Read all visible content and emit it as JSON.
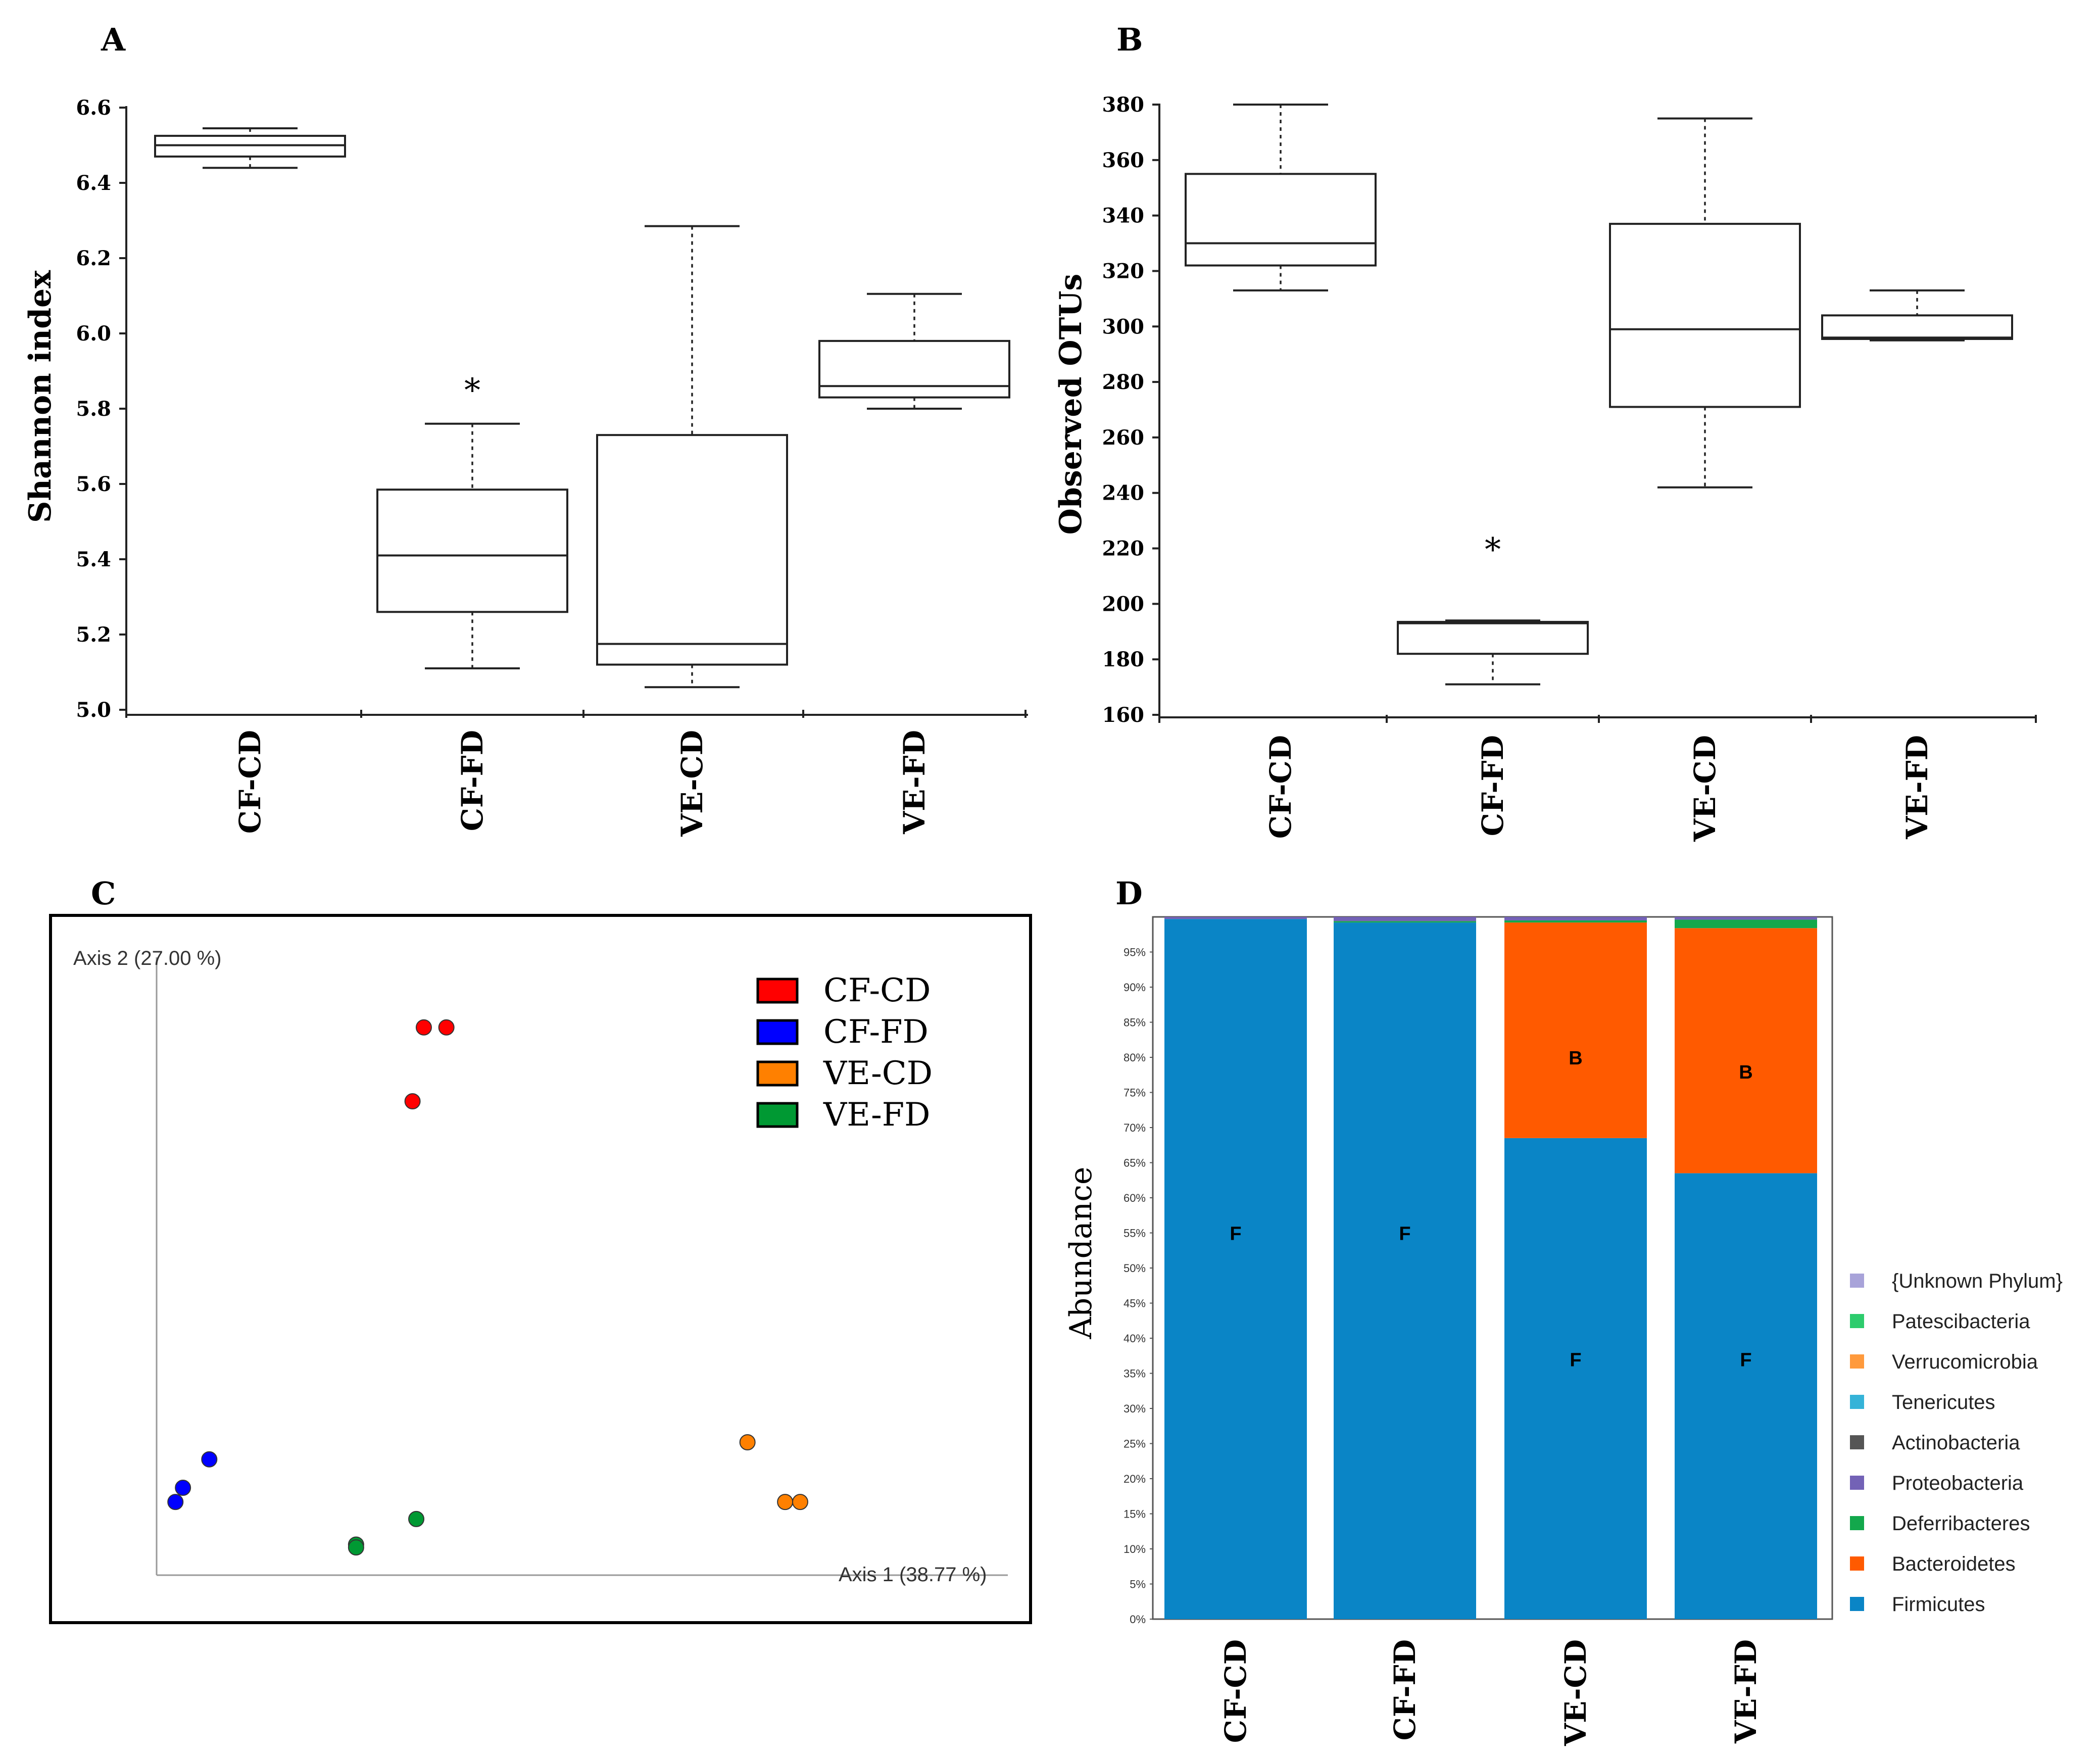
{
  "panels": {
    "A": "A",
    "B": "B",
    "C": "C",
    "D": "D"
  },
  "chart_data": [
    {
      "id": "A",
      "type": "box",
      "title": "",
      "xlabel": "",
      "ylabel": "Shannon index",
      "ylim": [
        5.0,
        6.6
      ],
      "yticks": [
        "5.0",
        "5.2",
        "5.4",
        "5.6",
        "5.8",
        "6.0",
        "6.2",
        "6.4",
        "6.6"
      ],
      "categories": [
        "CF-CD",
        "CF-FD",
        "VE-CD",
        "VE-FD"
      ],
      "boxes": [
        {
          "min": 6.44,
          "q1": 6.47,
          "median": 6.5,
          "q3": 6.525,
          "max": 6.545
        },
        {
          "min": 5.11,
          "q1": 5.26,
          "median": 5.41,
          "q3": 5.585,
          "max": 5.76
        },
        {
          "min": 5.06,
          "q1": 5.12,
          "median": 5.175,
          "q3": 5.73,
          "max": 6.285
        },
        {
          "min": 5.8,
          "q1": 5.83,
          "median": 5.86,
          "q3": 5.98,
          "max": 6.105
        }
      ],
      "annotations": [
        {
          "category": "CF-FD",
          "text": "*",
          "y": 5.86
        }
      ]
    },
    {
      "id": "B",
      "type": "box",
      "title": "",
      "xlabel": "",
      "ylabel": "Observed OTUs",
      "ylim": [
        160,
        380
      ],
      "yticks": [
        "160",
        "180",
        "200",
        "220",
        "240",
        "260",
        "280",
        "300",
        "320",
        "340",
        "360",
        "380"
      ],
      "categories": [
        "CF-CD",
        "CF-FD",
        "VE-CD",
        "VE-FD"
      ],
      "boxes": [
        {
          "min": 313,
          "q1": 322,
          "median": 330,
          "q3": 355,
          "max": 380
        },
        {
          "min": 171,
          "q1": 182,
          "median": 193,
          "q3": 193.5,
          "max": 194
        },
        {
          "min": 242,
          "q1": 271,
          "median": 299,
          "q3": 337,
          "max": 375
        },
        {
          "min": 295,
          "q1": 295.5,
          "median": 296,
          "q3": 304,
          "max": 313
        }
      ],
      "annotations": [
        {
          "category": "CF-FD",
          "text": "*",
          "y": 221
        }
      ]
    },
    {
      "id": "C",
      "type": "scatter",
      "title": "",
      "xlabel": "Axis 1 (38.77 %)",
      "ylabel": "Axis 2 (27.00 %)",
      "xlim": [
        0,
        1
      ],
      "ylim": [
        0,
        1
      ],
      "legend": [
        {
          "name": "CF-CD",
          "color": "#ff0000"
        },
        {
          "name": "CF-FD",
          "color": "#0000ff"
        },
        {
          "name": "VE-CD",
          "color": "#ff8000"
        },
        {
          "name": "VE-FD",
          "color": "#009933"
        }
      ],
      "series": [
        {
          "name": "CF-CD",
          "color": "#ff0000",
          "points": [
            [
              0.355,
              0.93
            ],
            [
              0.385,
              0.93
            ],
            [
              0.34,
              0.8
            ]
          ]
        },
        {
          "name": "CF-FD",
          "color": "#0000ff",
          "points": [
            [
              0.07,
              0.17
            ],
            [
              0.035,
              0.12
            ],
            [
              0.025,
              0.095
            ]
          ]
        },
        {
          "name": "VE-CD",
          "color": "#ff8000",
          "points": [
            [
              0.785,
              0.2
            ],
            [
              0.835,
              0.095
            ],
            [
              0.855,
              0.095
            ]
          ]
        },
        {
          "name": "VE-FD",
          "color": "#009933",
          "points": [
            [
              0.345,
              0.065
            ],
            [
              0.265,
              0.02
            ],
            [
              0.265,
              0.015
            ]
          ]
        }
      ]
    },
    {
      "id": "D",
      "type": "stacked_bar",
      "title": "",
      "xlabel": "",
      "ylabel": "Abundance",
      "ylim": [
        0,
        100
      ],
      "yticks": [
        "0%",
        "5%",
        "10%",
        "15%",
        "20%",
        "25%",
        "30%",
        "35%",
        "40%",
        "45%",
        "50%",
        "55%",
        "60%",
        "65%",
        "70%",
        "75%",
        "80%",
        "85%",
        "90%",
        "95%"
      ],
      "categories": [
        "CF-CD",
        "CF-FD",
        "VE-CD",
        "VE-FD"
      ],
      "legend": [
        {
          "name": "{Unknown Phylum}",
          "color": "#a8a3d9"
        },
        {
          "name": "Patescibacteria",
          "color": "#2dcc6d"
        },
        {
          "name": "Verrucomicrobia",
          "color": "#ff9a3c"
        },
        {
          "name": "Tenericutes",
          "color": "#35b3d8"
        },
        {
          "name": "Actinobacteria",
          "color": "#555555"
        },
        {
          "name": "Proteobacteria",
          "color": "#7362b6"
        },
        {
          "name": "Deferribacteres",
          "color": "#13a84c"
        },
        {
          "name": "Bacteroidetes",
          "color": "#ff5a00"
        },
        {
          "name": "Firmicutes",
          "color": "#0a85c6"
        }
      ],
      "series": [
        {
          "name": "Firmicutes",
          "color": "#0a85c6",
          "values": [
            99.7,
            99.2,
            68.5,
            63.5
          ]
        },
        {
          "name": "Bacteroidetes",
          "color": "#ff5a00",
          "values": [
            0,
            0,
            30.7,
            34.9
          ]
        },
        {
          "name": "Deferribacteres",
          "color": "#13a84c",
          "values": [
            0,
            0.2,
            0.3,
            1.2
          ]
        },
        {
          "name": "Proteobacteria",
          "color": "#7362b6",
          "values": [
            0.3,
            0.6,
            0.5,
            0.4
          ]
        }
      ],
      "bar_labels": [
        {
          "category": "CF-CD",
          "text": "F",
          "y": 55
        },
        {
          "category": "CF-FD",
          "text": "F",
          "y": 55
        },
        {
          "category": "VE-CD",
          "text": "F",
          "y": 37
        },
        {
          "category": "VE-CD",
          "text": "B",
          "y": 80
        },
        {
          "category": "VE-FD",
          "text": "F",
          "y": 37
        },
        {
          "category": "VE-FD",
          "text": "B",
          "y": 78
        }
      ]
    }
  ]
}
